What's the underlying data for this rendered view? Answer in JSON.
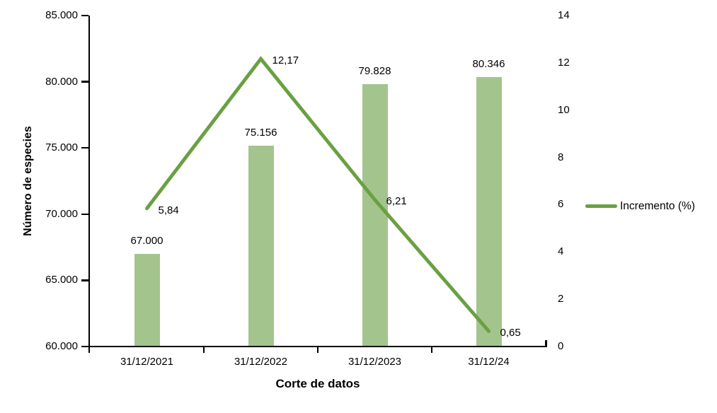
{
  "chart_data": {
    "type": "combo-bar-line",
    "categories": [
      "31/12/2021",
      "31/12/2022",
      "31/12/2023",
      "31/12/24"
    ],
    "series": [
      {
        "name": "Número de especies",
        "type": "bar",
        "axis": "left",
        "values": [
          67000,
          75156,
          79828,
          80346
        ],
        "data_labels": [
          "67.000",
          "75.156",
          "79.828",
          "80.346"
        ],
        "color": "#a3c48d"
      },
      {
        "name": "Incremento (%)",
        "type": "line",
        "axis": "right",
        "values": [
          5.84,
          12.17,
          6.21,
          0.65
        ],
        "data_labels": [
          "5,84",
          "12,17",
          "6,21",
          "0,65"
        ],
        "color": "#6aa042"
      }
    ],
    "xlabel": "Corte de datos",
    "ylabel_left": "Número de especies",
    "left_axis": {
      "min": 60000,
      "max": 85000,
      "step": 5000,
      "tick_labels": [
        "60.000",
        "65.000",
        "70.000",
        "75.000",
        "80.000",
        "85.000"
      ]
    },
    "right_axis": {
      "min": 0,
      "max": 14,
      "step": 2,
      "tick_labels": [
        "0",
        "2",
        "4",
        "6",
        "8",
        "10",
        "12",
        "14"
      ]
    },
    "legend": {
      "position": "right",
      "entries": [
        {
          "label": "Incremento (%)",
          "color": "#6aa042"
        }
      ]
    },
    "grid": false,
    "axis_color": "#000000",
    "text_color": "#000000"
  }
}
